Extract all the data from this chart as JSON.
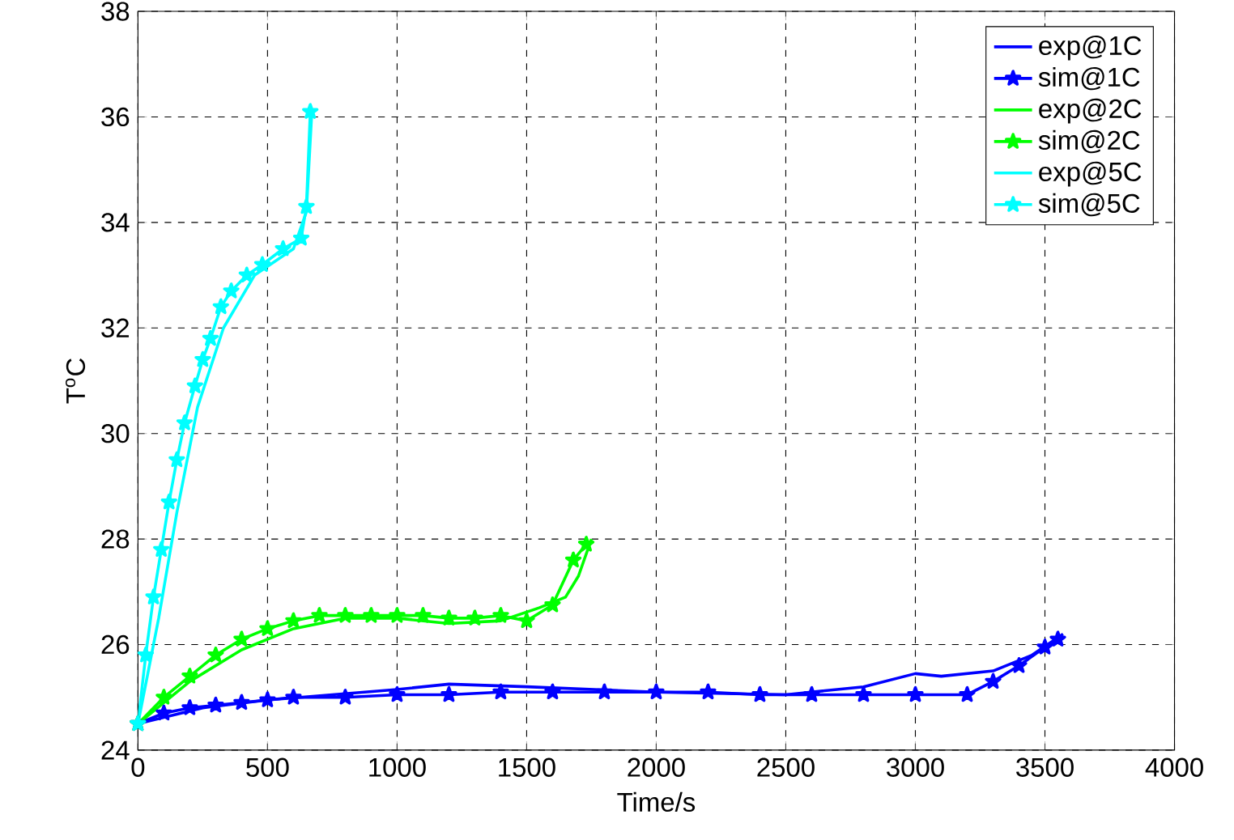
{
  "chart_data": {
    "type": "line",
    "xlabel": "Time/s",
    "ylabel": "T$^{o}$C",
    "xlim": [
      0,
      4000
    ],
    "ylim": [
      24,
      38
    ],
    "xticks": [
      0,
      500,
      1000,
      1500,
      2000,
      2500,
      3000,
      3500,
      4000
    ],
    "yticks": [
      24,
      26,
      28,
      30,
      32,
      34,
      36,
      38
    ],
    "grid": true,
    "legend": "top right",
    "series": [
      {
        "name": "exp@1C",
        "color": "#0000ff",
        "marker": "none",
        "x": [
          0,
          250,
          500,
          750,
          1000,
          1200,
          1500,
          2000,
          2500,
          2800,
          3000,
          3100,
          3300,
          3450,
          3570
        ],
        "values": [
          24.5,
          24.8,
          24.95,
          25.05,
          25.15,
          25.25,
          25.2,
          25.1,
          25.05,
          25.2,
          25.45,
          25.4,
          25.5,
          25.8,
          26.2
        ]
      },
      {
        "name": "sim@1C",
        "color": "#0000ff",
        "marker": "star",
        "x": [
          0,
          100,
          200,
          300,
          400,
          500,
          600,
          800,
          1000,
          1200,
          1400,
          1600,
          1800,
          2000,
          2200,
          2400,
          2600,
          2800,
          3000,
          3200,
          3300,
          3400,
          3500,
          3550
        ],
        "values": [
          24.5,
          24.7,
          24.8,
          24.85,
          24.9,
          24.95,
          25.0,
          25.0,
          25.05,
          25.05,
          25.1,
          25.1,
          25.1,
          25.1,
          25.1,
          25.05,
          25.05,
          25.05,
          25.05,
          25.05,
          25.3,
          25.6,
          25.95,
          26.1
        ]
      },
      {
        "name": "exp@2C",
        "color": "#00ff00",
        "marker": "none",
        "x": [
          0,
          200,
          400,
          600,
          800,
          1000,
          1200,
          1400,
          1550,
          1650,
          1700,
          1750
        ],
        "values": [
          24.5,
          25.3,
          25.9,
          26.3,
          26.5,
          26.5,
          26.4,
          26.45,
          26.7,
          26.9,
          27.3,
          28.0
        ]
      },
      {
        "name": "sim@2C",
        "color": "#00ff00",
        "marker": "star",
        "x": [
          0,
          100,
          200,
          300,
          400,
          500,
          600,
          700,
          800,
          900,
          1000,
          1100,
          1200,
          1300,
          1400,
          1500,
          1600,
          1680,
          1730
        ],
        "values": [
          24.5,
          25.0,
          25.4,
          25.8,
          26.1,
          26.3,
          26.45,
          26.55,
          26.55,
          26.55,
          26.55,
          26.55,
          26.5,
          26.5,
          26.55,
          26.45,
          26.75,
          27.6,
          27.9
        ]
      },
      {
        "name": "exp@5C",
        "color": "#00ffff",
        "marker": "none",
        "x": [
          0,
          80,
          150,
          230,
          330,
          450,
          600,
          650,
          670
        ],
        "values": [
          24.5,
          26.5,
          28.5,
          30.5,
          32.0,
          33.0,
          33.5,
          34.2,
          36.0
        ]
      },
      {
        "name": "sim@5C",
        "color": "#00ffff",
        "marker": "star",
        "x": [
          0,
          30,
          60,
          90,
          120,
          150,
          180,
          220,
          250,
          280,
          320,
          360,
          420,
          480,
          560,
          630,
          650,
          665
        ],
        "values": [
          24.5,
          25.8,
          26.9,
          27.8,
          28.7,
          29.5,
          30.2,
          30.9,
          31.4,
          31.8,
          32.4,
          32.7,
          33.0,
          33.2,
          33.5,
          33.7,
          34.3,
          36.1
        ]
      }
    ]
  }
}
